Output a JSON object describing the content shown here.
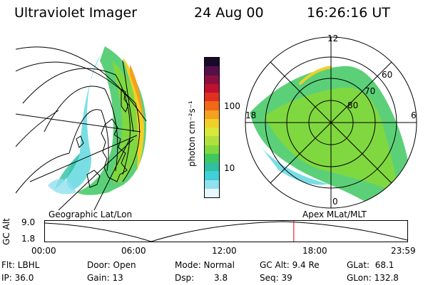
{
  "header": {
    "instrument": "Ultraviolet Imager",
    "date": "24 Aug 00",
    "time": "16:26:16 UT"
  },
  "colorbar": {
    "unit_label": "photon cm⁻²s⁻¹",
    "ticks": [
      "100",
      "10"
    ],
    "colors": [
      "#1a0a2a",
      "#55104a",
      "#8a1040",
      "#c01030",
      "#e03020",
      "#f06818",
      "#f5a020",
      "#f0d028",
      "#d8e838",
      "#b0e040",
      "#80d840",
      "#40c860",
      "#30c0a0",
      "#40d0d8",
      "#90e0f0",
      "#e8f8ff"
    ]
  },
  "left_panel": {
    "caption": "Geographic Lat/Lon"
  },
  "right_panel": {
    "caption": "Apex MLat/MLT",
    "mlt_labels": {
      "top": "12",
      "left": "18",
      "right": "6",
      "bottom": "0"
    },
    "lat_labels": [
      "60",
      "70",
      "80"
    ]
  },
  "altitude_plot": {
    "ylabel": "GC Alt",
    "y_ticks": [
      "9.0",
      "1.8"
    ],
    "x_ticks": [
      "00:00",
      "06:00",
      "12:00",
      "18:00",
      "23:59"
    ],
    "current_time_fraction": 0.686
  },
  "status": {
    "flt": "Flt: LBHL",
    "ip": "IP: 36.0",
    "door": "Door: Open",
    "gain": "Gain: 13",
    "mode": "Mode: Normal",
    "dsp_label": "Dsp:",
    "dsp_value": "3.8",
    "gc_alt": "GC Alt: 9.4 Re",
    "seq": "Seq: 39",
    "glat": "GLat:  68.1",
    "glon": "GLon: 132.8"
  }
}
